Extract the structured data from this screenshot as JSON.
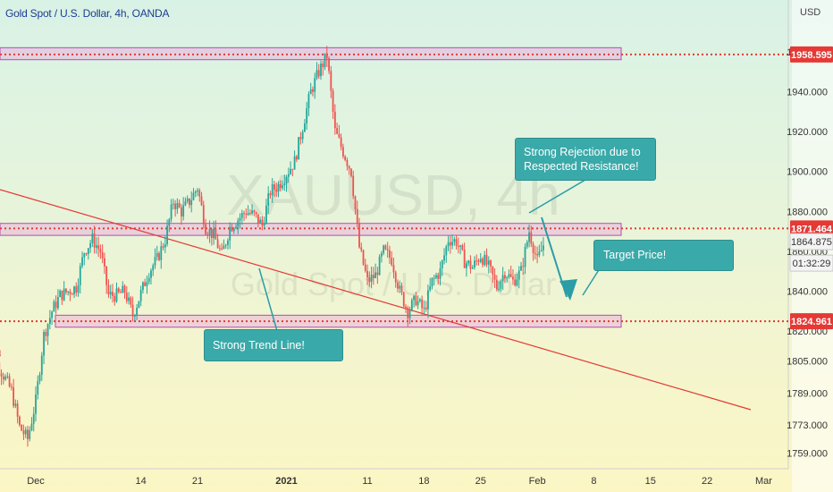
{
  "header": {
    "title": "Gold Spot / U.S. Dollar, 4h, OANDA",
    "currency": "USD"
  },
  "watermark": {
    "symbol": "XAUUSD, 4h",
    "name": "Gold Spot / U.S. Dollar"
  },
  "colors": {
    "up": "#26a69a",
    "down": "#ef5350",
    "level_line": "#e53935",
    "zone_fill": "#e8a6dc",
    "zone_stroke": "#b04fb0",
    "callout": "#3aa9a9",
    "trend_line": "#e53935",
    "arrow": "#2a9da6"
  },
  "callouts": {
    "rejection": [
      "Strong Rejection due to",
      "Respected Resistance!"
    ],
    "target": "Target Price!",
    "trend": "Strong Trend Line!"
  },
  "chart_data": {
    "type": "candlestick",
    "title": "Gold Spot / U.S. Dollar, 4h, OANDA",
    "y_unit": "USD",
    "ylim": [
      1752,
      1985
    ],
    "x_ticks": [
      "Dec",
      "14",
      "21",
      "2021",
      "11",
      "18",
      "25",
      "Feb",
      "8",
      "15",
      "22",
      "Mar"
    ],
    "y_ticks": [
      1759.0,
      1773.0,
      1789.0,
      1805.0,
      1820.0,
      1840.0,
      1860.0,
      1880.0,
      1900.0,
      1920.0,
      1940.0,
      1960.0
    ],
    "price_labels": [
      {
        "label": "1958.595",
        "value": 1958.595,
        "kind": "level"
      },
      {
        "label": "1871.464",
        "value": 1871.464,
        "kind": "level"
      },
      {
        "label": "1864.875",
        "value": 1864.875,
        "kind": "last_price"
      },
      {
        "label": "01:32:29",
        "kind": "countdown"
      },
      {
        "label": "1824.961",
        "value": 1824.961,
        "kind": "level"
      }
    ],
    "horizontal_levels": [
      1958.595,
      1871.464,
      1824.961
    ],
    "zones": [
      {
        "from": "Nov 23",
        "to": "Feb 10",
        "low": 1956,
        "high": 1962
      },
      {
        "from": "Nov 23",
        "to": "Feb 10",
        "low": 1868,
        "high": 1874
      },
      {
        "from": "Dec 2",
        "to": "Feb 10",
        "low": 1822,
        "high": 1828
      }
    ],
    "trend_line": {
      "from": {
        "date": "Nov 23",
        "price": 1885
      },
      "to": {
        "date": "Mar 1",
        "price": 1768
      }
    },
    "path": [
      [
        "Nov 23",
        1808
      ],
      [
        "Nov 25",
        1808
      ],
      [
        "Nov 26",
        1806
      ],
      [
        "Nov 28",
        1790
      ],
      [
        "Nov 29",
        1772
      ],
      [
        "Nov 30",
        1766
      ],
      [
        "Dec 1",
        1785
      ],
      [
        "Dec 2",
        1818
      ],
      [
        "Dec 3",
        1830
      ],
      [
        "Dec 4",
        1838
      ],
      [
        "Dec 5",
        1840
      ],
      [
        "Dec 6",
        1842
      ],
      [
        "Dec 7",
        1860
      ],
      [
        "Dec 8",
        1866
      ],
      [
        "Dec 9",
        1860
      ],
      [
        "Dec 10",
        1838
      ],
      [
        "Dec 11",
        1838
      ],
      [
        "Dec 12",
        1840
      ],
      [
        "Dec 13",
        1828
      ],
      [
        "Dec 15",
        1850
      ],
      [
        "Dec 16",
        1856
      ],
      [
        "Dec 17",
        1866
      ],
      [
        "Dec 18",
        1885
      ],
      [
        "Dec 19",
        1880
      ],
      [
        "Dec 20",
        1885
      ],
      [
        "Dec 21",
        1892
      ],
      [
        "Dec 22",
        1872
      ],
      [
        "Dec 23",
        1868
      ],
      [
        "Dec 24",
        1858
      ],
      [
        "Dec 25",
        1872
      ],
      [
        "Dec 27",
        1880
      ],
      [
        "Dec 28",
        1878
      ],
      [
        "Dec 29",
        1873
      ],
      [
        "Dec 30",
        1890
      ],
      [
        "Dec 31",
        1893
      ],
      [
        "Jan 2",
        1905
      ],
      [
        "Jan 4",
        1940
      ],
      [
        "Jan 5",
        1950
      ],
      [
        "Jan 6",
        1958
      ],
      [
        "Jan 7",
        1920
      ],
      [
        "Jan 8",
        1910
      ],
      [
        "Jan 9",
        1900
      ],
      [
        "Jan 10",
        1862
      ],
      [
        "Jan 11",
        1845
      ],
      [
        "Jan 12",
        1848
      ],
      [
        "Jan 13",
        1860
      ],
      [
        "Jan 14",
        1856
      ],
      [
        "Jan 15",
        1840
      ],
      [
        "Jan 16",
        1830
      ],
      [
        "Jan 17",
        1836
      ],
      [
        "Jan 18",
        1830
      ],
      [
        "Jan 19",
        1845
      ],
      [
        "Jan 20",
        1850
      ],
      [
        "Jan 21",
        1866
      ],
      [
        "Jan 22",
        1865
      ],
      [
        "Jan 23",
        1855
      ],
      [
        "Jan 24",
        1852
      ],
      [
        "Jan 25",
        1858
      ],
      [
        "Jan 26",
        1852
      ],
      [
        "Jan 27",
        1842
      ],
      [
        "Jan 28",
        1850
      ],
      [
        "Jan 29",
        1845
      ],
      [
        "Jan 30",
        1850
      ],
      [
        "Jan 31",
        1870
      ],
      [
        "Feb 1",
        1855
      ],
      [
        "Feb 2",
        1866
      ]
    ]
  }
}
